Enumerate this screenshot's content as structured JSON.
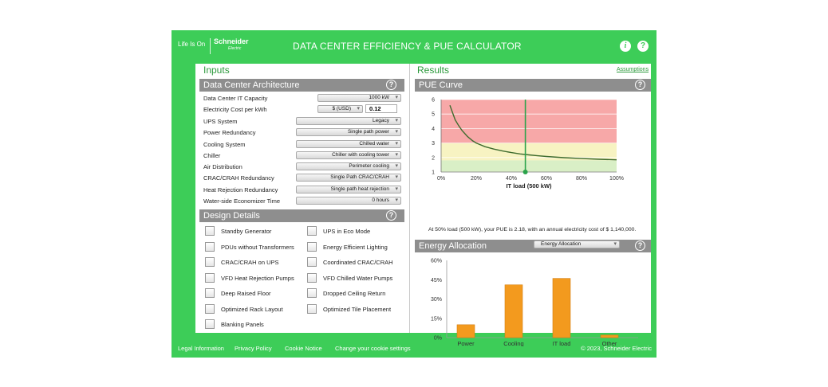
{
  "header": {
    "life_is_on": "Life Is On",
    "brand": "Schneider",
    "brand_sub": "Electric",
    "title": "DATA CENTER EFFICIENCY & PUE CALCULATOR",
    "info_icon": "info-icon",
    "help_icon": "question-icon"
  },
  "inputs": {
    "heading": "Inputs",
    "architecture": {
      "title": "Data Center Architecture",
      "rows": [
        {
          "label": "Data Center IT Capacity",
          "value": "1000 kW"
        },
        {
          "label": "Electricity Cost per kWh",
          "currency": "$ (USD)",
          "value": "0.12"
        },
        {
          "label": "UPS System",
          "value": "Legacy"
        },
        {
          "label": "Power Redundancy",
          "value": "Single path power"
        },
        {
          "label": "Cooling System",
          "value": "Chilled water"
        },
        {
          "label": "Chiller",
          "value": "Chiller with cooling tower"
        },
        {
          "label": "Air Distribution",
          "value": "Perimeter cooling"
        },
        {
          "label": "CRAC/CRAH Redundancy",
          "value": "Single Path CRAC/CRAH"
        },
        {
          "label": "Heat Rejection Redundancy",
          "value": "Single path heat rejection"
        },
        {
          "label": "Water-side Economizer Time",
          "value": "0 hours"
        }
      ]
    },
    "design": {
      "title": "Design Details",
      "left": [
        "Standby Generator",
        "PDUs without Transformers",
        "CRAC/CRAH on UPS",
        "VFD Heat Rejection Pumps",
        "Deep Raised Floor",
        "Optimized Rack Layout",
        "Blanking Panels"
      ],
      "right": [
        "UPS in Eco Mode",
        "Energy Efficient Lighting",
        "Coordinated CRAC/CRAH",
        "VFD Chilled Water Pumps",
        "Dropped Ceiling Return",
        "Optimized Tile Placement"
      ]
    }
  },
  "results": {
    "heading": "Results",
    "assumptions": "Assumptions",
    "pue_title": "PUE Curve",
    "pue_note": "At 50% load (500 kW), your PUE is 2.18, with an annual electricity cost of $ 1,140,000.",
    "energy_title": "Energy Allocation",
    "energy_select": "Energy Allocation"
  },
  "colors": {
    "brand_green": "#3dcd58",
    "bar_orange": "#f39a1e",
    "zone_red": "#f7a8a8",
    "zone_yellow": "#f7f3c2",
    "zone_green": "#d9efc6",
    "curve": "#3e6b2e",
    "marker": "#2aa34a"
  },
  "chart_data": [
    {
      "type": "line",
      "title": "PUE Curve",
      "xlabel": "IT load (500 kW)",
      "ylabel": "",
      "xlim": [
        0,
        100
      ],
      "ylim": [
        1,
        6
      ],
      "xticks": [
        "0%",
        "20%",
        "40%",
        "60%",
        "80%",
        "100%"
      ],
      "yticks": [
        "1",
        "2",
        "3",
        "4",
        "5",
        "6"
      ],
      "grid": true,
      "marker_x": 48,
      "zones": [
        {
          "from": 3,
          "to": 6,
          "level": "high"
        },
        {
          "from": 1.8,
          "to": 3,
          "level": "medium"
        },
        {
          "from": 1,
          "to": 1.8,
          "level": "low"
        }
      ],
      "series": [
        {
          "x": [
            5,
            8,
            10,
            12,
            15,
            18,
            20,
            25,
            30,
            35,
            40,
            45,
            50,
            55,
            60,
            70,
            80,
            90,
            100
          ],
          "y": [
            5.6,
            4.6,
            4.2,
            3.85,
            3.45,
            3.15,
            3.0,
            2.75,
            2.58,
            2.45,
            2.34,
            2.25,
            2.18,
            2.12,
            2.07,
            1.99,
            1.93,
            1.88,
            1.84
          ]
        }
      ]
    },
    {
      "type": "bar",
      "title": "Energy Allocation",
      "categories": [
        "Power",
        "Cooling",
        "IT load",
        "Other"
      ],
      "values": [
        10,
        41,
        46,
        2
      ],
      "ylim": [
        0,
        60
      ],
      "yticks": [
        "0%",
        "15%",
        "30%",
        "45%",
        "60%"
      ]
    }
  ],
  "footer": {
    "links": [
      "Legal Information",
      "Privacy Policy",
      "Cookie Notice",
      "Change your cookie settings"
    ],
    "copyright": "© 2023, Schneider Electric"
  }
}
